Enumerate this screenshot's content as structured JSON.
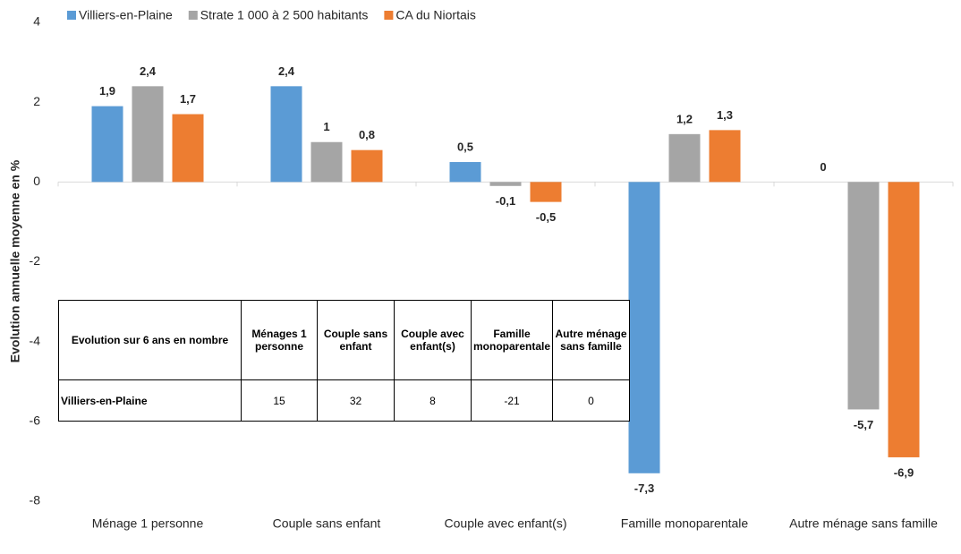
{
  "chart_data": {
    "type": "bar",
    "ylabel": "Evolution annuelle moyenne en %",
    "categories": [
      "Ménage 1 personne",
      "Couple sans enfant",
      "Couple avec enfant(s)",
      "Famille monoparentale",
      "Autre ménage sans famille"
    ],
    "series": [
      {
        "name": "Villiers-en-Plaine",
        "color": "#5b9bd5",
        "values": [
          1.9,
          2.4,
          0.5,
          -7.3,
          0
        ],
        "value_labels": [
          "1,9",
          "2,4",
          "0,5",
          "-7,3",
          "0"
        ]
      },
      {
        "name": "Strate 1 000 à 2 500 habitants",
        "color": "#a5a5a5",
        "values": [
          2.4,
          1,
          -0.1,
          1.2,
          -5.7
        ],
        "value_labels": [
          "2,4",
          "1",
          "-0,1",
          "1,2",
          "-5,7"
        ]
      },
      {
        "name": "CA du Niortais",
        "color": "#ed7d31",
        "values": [
          1.7,
          0.8,
          -0.5,
          1.3,
          -6.9
        ],
        "value_labels": [
          "1,7",
          "0,8",
          "-0,5",
          "1,3",
          "-6,9"
        ]
      }
    ],
    "ylim": [
      -8,
      4
    ],
    "yticks": [
      -8,
      -6,
      -4,
      -2,
      0,
      2,
      4
    ],
    "grid": false,
    "legend": "top",
    "table": {
      "header": [
        "Evolution sur 6 ans en nombre",
        "Ménages 1 personne",
        "Couple sans enfant",
        "Couple avec enfant(s)",
        "Famille monoparentale",
        "Autre ménage sans famille"
      ],
      "rows": [
        [
          "Villiers-en-Plaine",
          15,
          32,
          8,
          -21,
          0
        ]
      ]
    }
  }
}
